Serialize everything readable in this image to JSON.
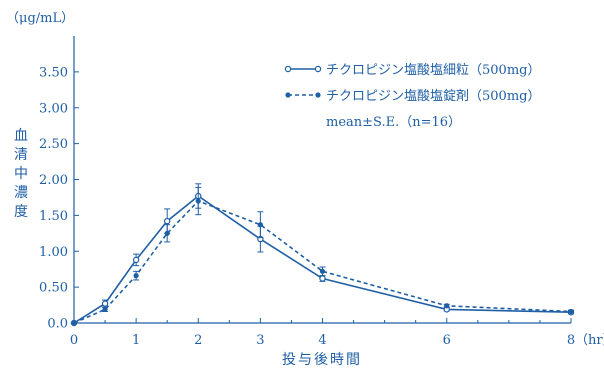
{
  "chart_data": {
    "type": "line",
    "title": "",
    "color": "#1f5fa6",
    "ylabel": "血清中濃度",
    "yunit": "（μg/mL）",
    "xlabel": "投与後時間",
    "xunit": "（hr）",
    "xlim": [
      0,
      8
    ],
    "ylim": [
      0,
      4
    ],
    "x_ticks": [
      0,
      1,
      2,
      3,
      4,
      6,
      8
    ],
    "x_tick_labels": [
      "0",
      "1",
      "2",
      "3",
      "4",
      "6",
      "8"
    ],
    "y_ticks": [
      0,
      0.5,
      1.0,
      1.5,
      2.0,
      2.5,
      3.0,
      3.5
    ],
    "y_tick_labels": [
      "0.0",
      "0.50",
      "1.00",
      "1.50",
      "2.00",
      "2.50",
      "3.00",
      "3.50"
    ],
    "grid": false,
    "legend_position": "top-right",
    "legend_note": "mean±S.E.（n=16）",
    "series": [
      {
        "name": "チクロピジン塩酸塩細粒（500mg）",
        "style": "solid",
        "marker": "open-circle",
        "x": [
          0,
          0.5,
          1,
          1.5,
          2,
          3,
          4,
          6,
          8
        ],
        "y": [
          0.0,
          0.27,
          0.88,
          1.42,
          1.77,
          1.17,
          0.62,
          0.19,
          0.15
        ],
        "err": [
          0,
          0.05,
          0.08,
          0.17,
          0.17,
          0.18,
          0.04,
          0.02,
          0.02
        ]
      },
      {
        "name": "チクロピジン塩酸塩錠剤（500mg）",
        "style": "dashed",
        "marker": "filled-circle",
        "x": [
          0,
          0.5,
          1,
          1.5,
          2,
          3,
          4,
          6,
          8
        ],
        "y": [
          0.0,
          0.19,
          0.66,
          1.25,
          1.7,
          1.37,
          0.72,
          0.24,
          0.16
        ],
        "err": [
          0,
          0.03,
          0.06,
          0.12,
          0.19,
          0.18,
          0.06,
          0.02,
          0.02
        ]
      }
    ]
  }
}
